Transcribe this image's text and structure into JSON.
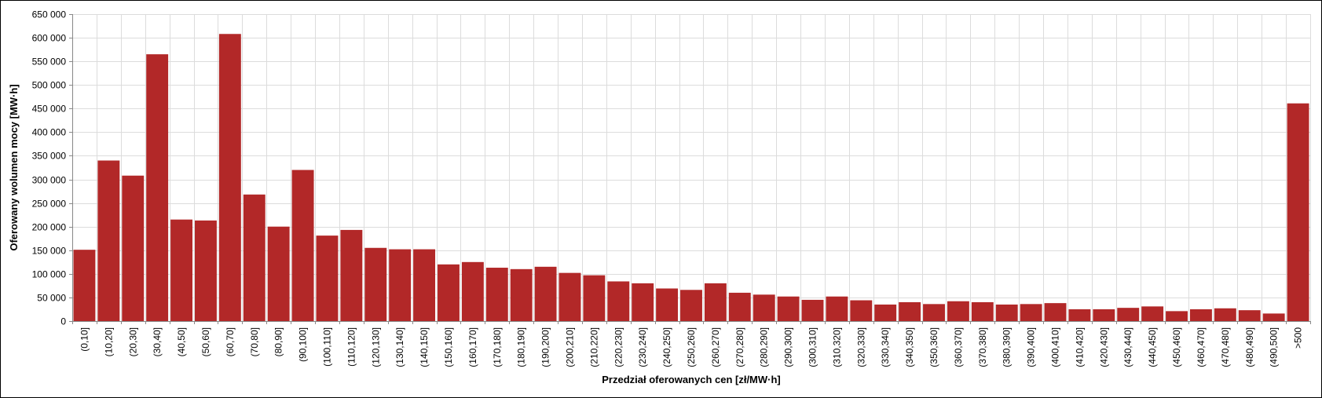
{
  "chart_data": {
    "type": "bar",
    "title": "",
    "xlabel": "Przedział oferowanych cen [zł/MW·h]",
    "ylabel": "Oferowany wolumen mocy [MW·h]",
    "ylim": [
      0,
      650000
    ],
    "yticks": [
      0,
      50000,
      100000,
      150000,
      200000,
      250000,
      300000,
      350000,
      400000,
      450000,
      500000,
      550000,
      600000,
      650000
    ],
    "ytick_labels": [
      "0",
      "50 000",
      "100 000",
      "150 000",
      "200 000",
      "250 000",
      "300 000",
      "350 000",
      "400 000",
      "450 000",
      "500 000",
      "550 000",
      "600 000",
      "650 000"
    ],
    "grid": true,
    "legend": "none",
    "bar_color": "#b22828",
    "categories": [
      "(0,10]",
      "(10,20]",
      "(20,30]",
      "(30,40]",
      "(40,50]",
      "(50,60]",
      "(60,70]",
      "(70,80]",
      "(80,90]",
      "(90,100]",
      "(100,110]",
      "(110,120]",
      "(120,130]",
      "(130,140]",
      "(140,150]",
      "(150,160]",
      "(160,170]",
      "(170,180]",
      "(180,190]",
      "(190,200]",
      "(200,210]",
      "(210,220]",
      "(220,230]",
      "(230,240]",
      "(240,250]",
      "(250,260]",
      "(260,270]",
      "(270,280]",
      "(280,290]",
      "(290,300]",
      "(300,310]",
      "(310,320]",
      "(320,330]",
      "(330,340]",
      "(340,350]",
      "(350,360]",
      "(360,370]",
      "(370,380]",
      "(380,390]",
      "(390,400]",
      "(400,410]",
      "(410,420]",
      "(420,430]",
      "(430,440]",
      "(440,450]",
      "(450,460]",
      "(460,470]",
      "(470,480]",
      "(480,490]",
      "(490,500]",
      ">500"
    ],
    "values": [
      151000,
      340000,
      308000,
      565000,
      215000,
      213000,
      608000,
      268000,
      200000,
      320000,
      181000,
      193000,
      155000,
      152000,
      152000,
      120000,
      125000,
      113000,
      110000,
      115000,
      102000,
      97000,
      84000,
      80000,
      69000,
      66000,
      80000,
      60000,
      56000,
      52000,
      45000,
      52000,
      44000,
      35000,
      40000,
      36000,
      42000,
      40000,
      35000,
      36000,
      38000,
      25000,
      25000,
      28000,
      31000,
      21000,
      25000,
      27000,
      23000,
      16000,
      461000
    ]
  }
}
